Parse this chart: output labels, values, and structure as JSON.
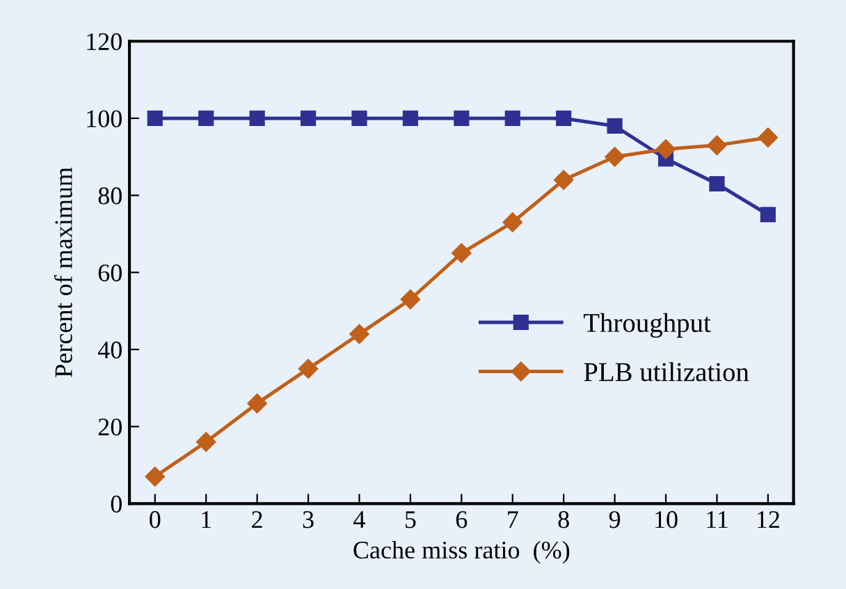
{
  "chart_data": {
    "type": "line",
    "xlabel": "Cache miss ratio  (%)",
    "ylabel": "Percent of maximum",
    "x": [
      0,
      1,
      2,
      3,
      4,
      5,
      6,
      7,
      8,
      9,
      10,
      11,
      12
    ],
    "series": [
      {
        "name": "Throughput",
        "color": "#2e3192",
        "marker": "square",
        "values": [
          100,
          100,
          100,
          100,
          100,
          100,
          100,
          100,
          100,
          98,
          89.5,
          83,
          75
        ]
      },
      {
        "name": "PLB utilization",
        "color": "#c0601a",
        "marker": "diamond",
        "values": [
          7,
          16,
          26,
          35,
          44,
          53,
          65,
          73,
          84,
          90,
          92,
          93,
          95
        ]
      }
    ],
    "xlim": [
      -0.5,
      12.5
    ],
    "xticks": [
      0,
      1,
      2,
      3,
      4,
      5,
      6,
      7,
      8,
      9,
      10,
      11,
      12
    ],
    "ylim": [
      0,
      120
    ],
    "yticks": [
      0,
      20,
      40,
      60,
      80,
      100,
      120
    ],
    "grid": false,
    "legend": "lower right",
    "line_style": "solid"
  }
}
